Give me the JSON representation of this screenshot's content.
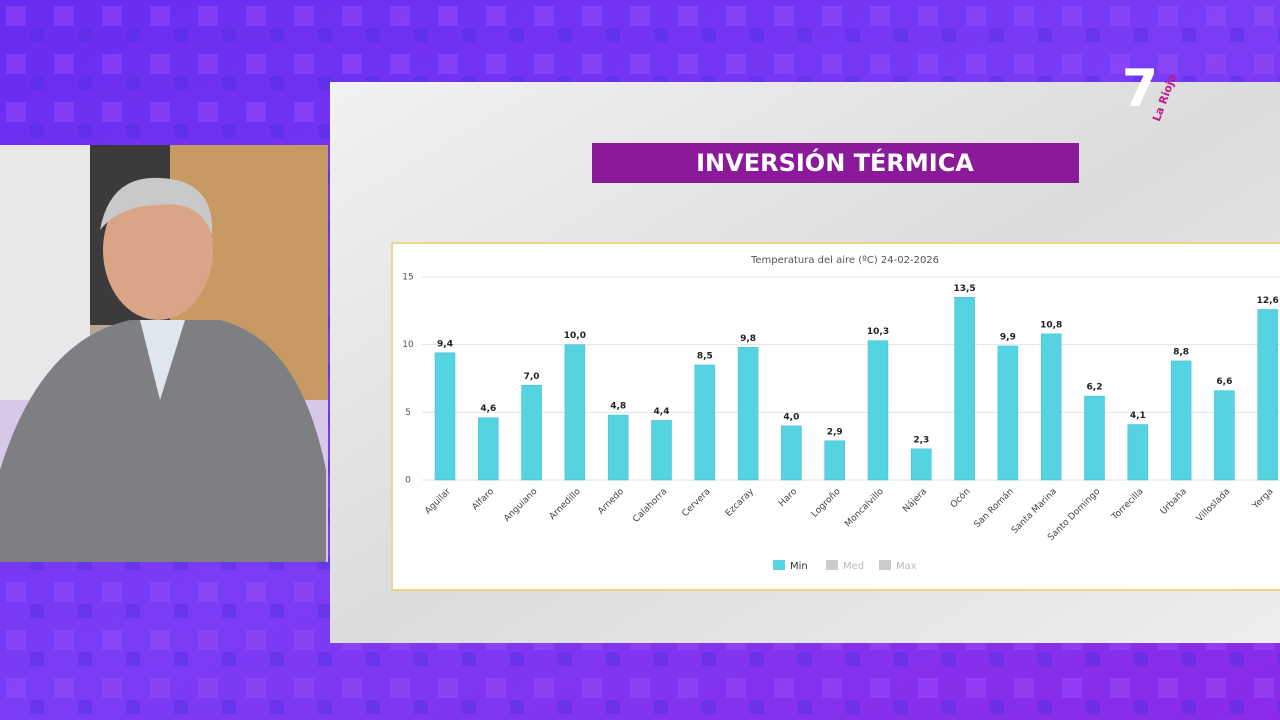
{
  "screen": {
    "title": "INVERSIÓN TÉRMICA"
  },
  "logo": {
    "number": "7",
    "text": "La Rioja"
  },
  "chart_data": {
    "type": "bar",
    "title": "Temperatura del aire (ºC) 24-02-2026",
    "categories": [
      "Aguilar",
      "Alfaro",
      "Anguiano",
      "Arnedillo",
      "Arnedo",
      "Calahorra",
      "Cervera",
      "Ezcaray",
      "Haro",
      "Logroño",
      "Moncalvillo",
      "Nájera",
      "Ocón",
      "San Román",
      "Santa Marina",
      "Santo Domingo",
      "Torrecilla",
      "Urbaña",
      "Villoslada",
      "Yerga"
    ],
    "series": [
      {
        "name": "Min",
        "color": "#56d3e0",
        "values": [
          9.4,
          4.6,
          7.0,
          10.0,
          4.8,
          4.4,
          8.5,
          9.8,
          4.0,
          2.9,
          10.3,
          2.3,
          13.5,
          9.9,
          10.8,
          6.2,
          4.1,
          8.8,
          6.6,
          12.6
        ],
        "value_labels": [
          "9,4",
          "4,6",
          "7,0",
          "10,0",
          "4,8",
          "4,4",
          "8,5",
          "9,8",
          "4,0",
          "2,9",
          "10,3",
          "2,3",
          "13,5",
          "9,9",
          "10,8",
          "6,2",
          "4,1",
          "8,8",
          "6,6",
          "12,6"
        ]
      }
    ],
    "hidden_series": [
      {
        "name": "Med",
        "color": "#cccccc"
      },
      {
        "name": "Max",
        "color": "#cccccc"
      }
    ],
    "ylim": [
      0,
      15
    ],
    "yticks": [
      0,
      5,
      10,
      15
    ],
    "grid": true
  }
}
